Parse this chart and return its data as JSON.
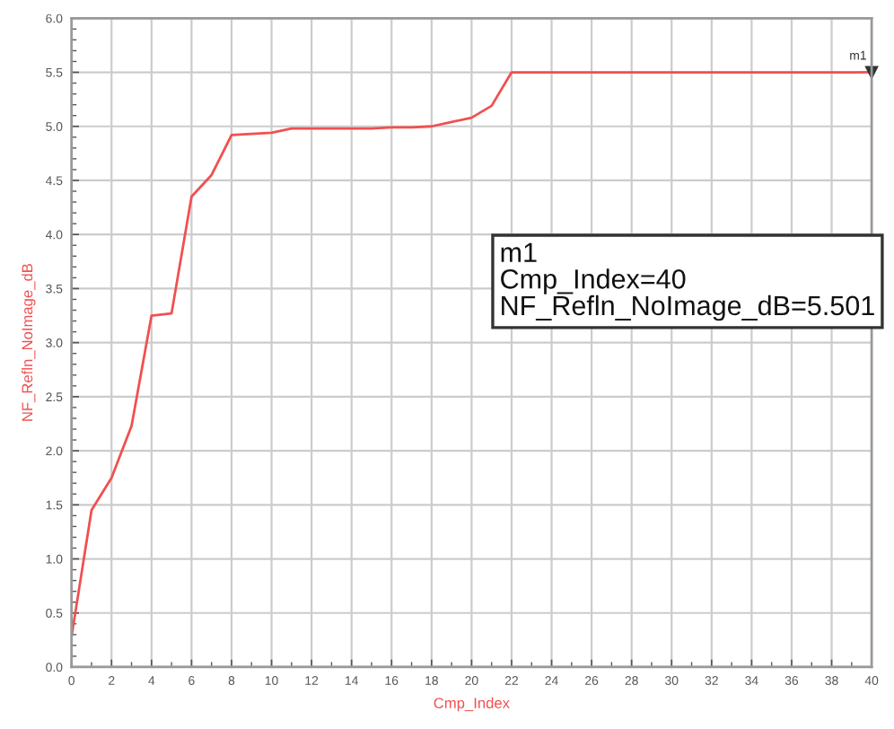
{
  "chart_data": {
    "type": "line",
    "xlabel": "Cmp_Index",
    "ylabel": "NF_Refln_NoImage_dB",
    "x": [
      0,
      1,
      2,
      3,
      4,
      5,
      6,
      7,
      8,
      9,
      10,
      11,
      12,
      13,
      14,
      15,
      16,
      17,
      18,
      19,
      20,
      21,
      22,
      23,
      24,
      25,
      26,
      27,
      28,
      29,
      30,
      31,
      32,
      33,
      34,
      35,
      36,
      37,
      38,
      39,
      40
    ],
    "series": [
      {
        "color": "#f05050",
        "values": [
          0.28,
          1.45,
          1.75,
          2.23,
          3.25,
          3.27,
          4.35,
          4.55,
          4.92,
          4.93,
          4.94,
          4.98,
          4.98,
          4.98,
          4.98,
          4.98,
          4.99,
          4.99,
          5.0,
          5.04,
          5.08,
          5.19,
          5.5,
          5.5,
          5.5,
          5.5,
          5.5,
          5.5,
          5.5,
          5.5,
          5.5,
          5.5,
          5.5,
          5.5,
          5.5,
          5.5,
          5.5,
          5.5,
          5.5,
          5.5,
          5.501
        ]
      }
    ],
    "xlim": [
      0,
      40
    ],
    "xticks": [
      0,
      2,
      4,
      6,
      8,
      10,
      12,
      14,
      16,
      18,
      20,
      22,
      24,
      26,
      28,
      30,
      32,
      34,
      36,
      38,
      40
    ],
    "ylim": [
      0,
      6
    ],
    "yticks": [
      {
        "value": 0,
        "label": "0.0"
      },
      {
        "value": 0.5,
        "label": "0.5"
      },
      {
        "value": 1,
        "label": "1.0"
      },
      {
        "value": 1.5,
        "label": "1.5"
      },
      {
        "value": 2,
        "label": "2.0"
      },
      {
        "value": 2.5,
        "label": "2.5"
      },
      {
        "value": 3,
        "label": "3.0"
      },
      {
        "value": 3.5,
        "label": "3.5"
      },
      {
        "value": 4,
        "label": "4.0"
      },
      {
        "value": 4.5,
        "label": "4.5"
      },
      {
        "value": 5,
        "label": "5.0"
      },
      {
        "value": 5.5,
        "label": "5.5"
      },
      {
        "value": 6,
        "label": "6.0"
      }
    ],
    "grid": true,
    "marker": "none",
    "line_style": "solid",
    "annotations": [
      {
        "text": "m1",
        "x": 40,
        "y": 5.501
      },
      "m1\nCmp_Index=40\nNF_Refln_NoImage_dB=5.501"
    ]
  }
}
